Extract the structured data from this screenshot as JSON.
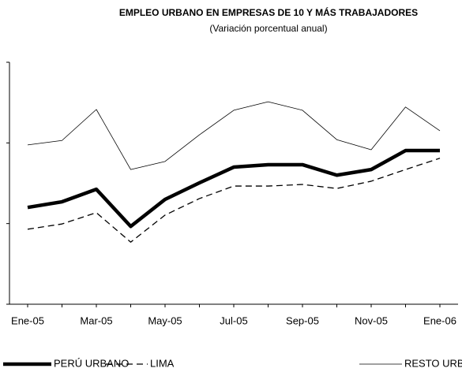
{
  "chart_data": {
    "type": "line",
    "title": "EMPLEO URBANO EN EMPRESAS DE 10 Y MÁS TRABAJADORES",
    "subtitle": "(Variación porcentual anual)",
    "categories": [
      "Ene-05",
      null,
      "Mar-05",
      null,
      "May-05",
      null,
      "Jul-05",
      null,
      "Sep-05",
      null,
      "Nov-05",
      null,
      "Ene-06"
    ],
    "series": [
      {
        "name": "PERÚ URBANO",
        "color": "#000000",
        "values": [
          2.4,
          2.54,
          2.85,
          1.93,
          2.6,
          3.01,
          3.4,
          3.46,
          3.46,
          3.2,
          3.34,
          3.81,
          3.81
        ]
      },
      {
        "name": "LIMA",
        "color": "#000000",
        "values": [
          1.86,
          1.99,
          2.27,
          1.54,
          2.21,
          2.62,
          2.93,
          2.93,
          2.97,
          2.87,
          3.05,
          3.34,
          3.62
        ]
      },
      {
        "name": "RESTO URBANO",
        "color": "#000000",
        "values": [
          3.95,
          4.06,
          4.83,
          3.34,
          3.54,
          4.2,
          4.81,
          5.02,
          4.81,
          4.08,
          3.83,
          4.89,
          4.3
        ]
      }
    ],
    "ylim": [
      0,
      6
    ],
    "yticks": [
      0,
      2,
      4,
      6
    ],
    "grid": false
  }
}
